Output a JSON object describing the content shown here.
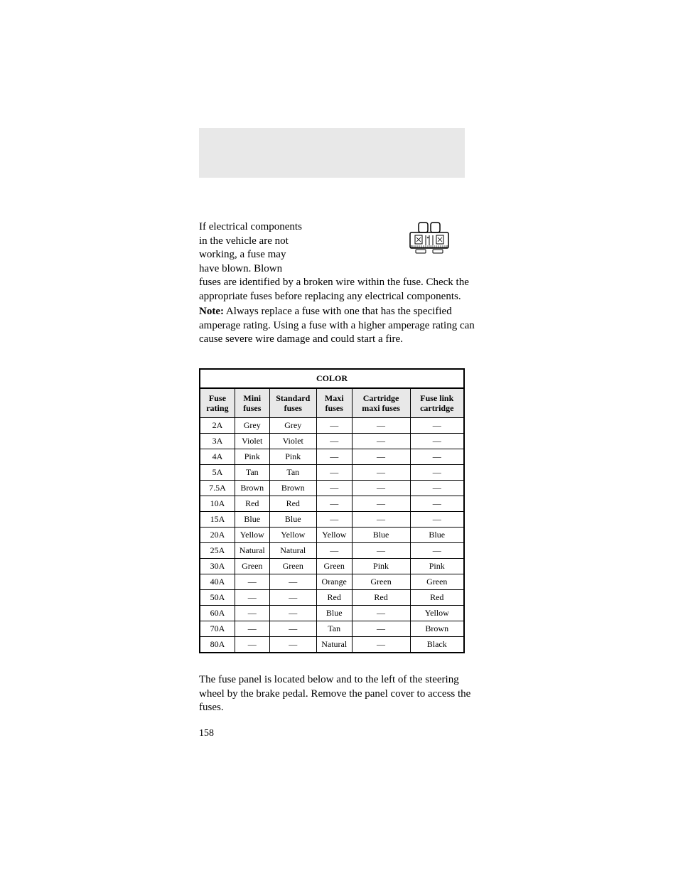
{
  "intro": {
    "left": "If electrical components in the vehicle are not working, a fuse may have blown. Blown",
    "cont": "fuses are identified by a broken wire within the fuse. Check the appropriate fuses before replacing any electrical components.",
    "note_label": "Note:",
    "note": " Always replace a fuse with one that has the specified amperage rating. Using a fuse with a higher amperage rating can cause severe wire damage and could start a fire."
  },
  "table": {
    "title": "COLOR",
    "headers": [
      "Fuse rating",
      "Mini fuses",
      "Standard fuses",
      "Maxi fuses",
      "Cartridge maxi fuses",
      "Fuse link cartridge"
    ],
    "rows": [
      [
        "2A",
        "Grey",
        "Grey",
        "—",
        "—",
        "—"
      ],
      [
        "3A",
        "Violet",
        "Violet",
        "—",
        "—",
        "—"
      ],
      [
        "4A",
        "Pink",
        "Pink",
        "—",
        "—",
        "—"
      ],
      [
        "5A",
        "Tan",
        "Tan",
        "—",
        "—",
        "—"
      ],
      [
        "7.5A",
        "Brown",
        "Brown",
        "—",
        "—",
        "—"
      ],
      [
        "10A",
        "Red",
        "Red",
        "—",
        "—",
        "—"
      ],
      [
        "15A",
        "Blue",
        "Blue",
        "—",
        "—",
        "—"
      ],
      [
        "20A",
        "Yellow",
        "Yellow",
        "Yellow",
        "Blue",
        "Blue"
      ],
      [
        "25A",
        "Natural",
        "Natural",
        "—",
        "—",
        "—"
      ],
      [
        "30A",
        "Green",
        "Green",
        "Green",
        "Pink",
        "Pink"
      ],
      [
        "40A",
        "—",
        "—",
        "Orange",
        "Green",
        "Green"
      ],
      [
        "50A",
        "—",
        "—",
        "Red",
        "Red",
        "Red"
      ],
      [
        "60A",
        "—",
        "—",
        "Blue",
        "—",
        "Yellow"
      ],
      [
        "70A",
        "—",
        "—",
        "Tan",
        "—",
        "Brown"
      ],
      [
        "80A",
        "—",
        "—",
        "Natural",
        "—",
        "Black"
      ]
    ]
  },
  "footer": "The fuse panel is located below and to the left of the steering wheel by the brake pedal. Remove the panel cover to access the fuses.",
  "page_num": "158"
}
